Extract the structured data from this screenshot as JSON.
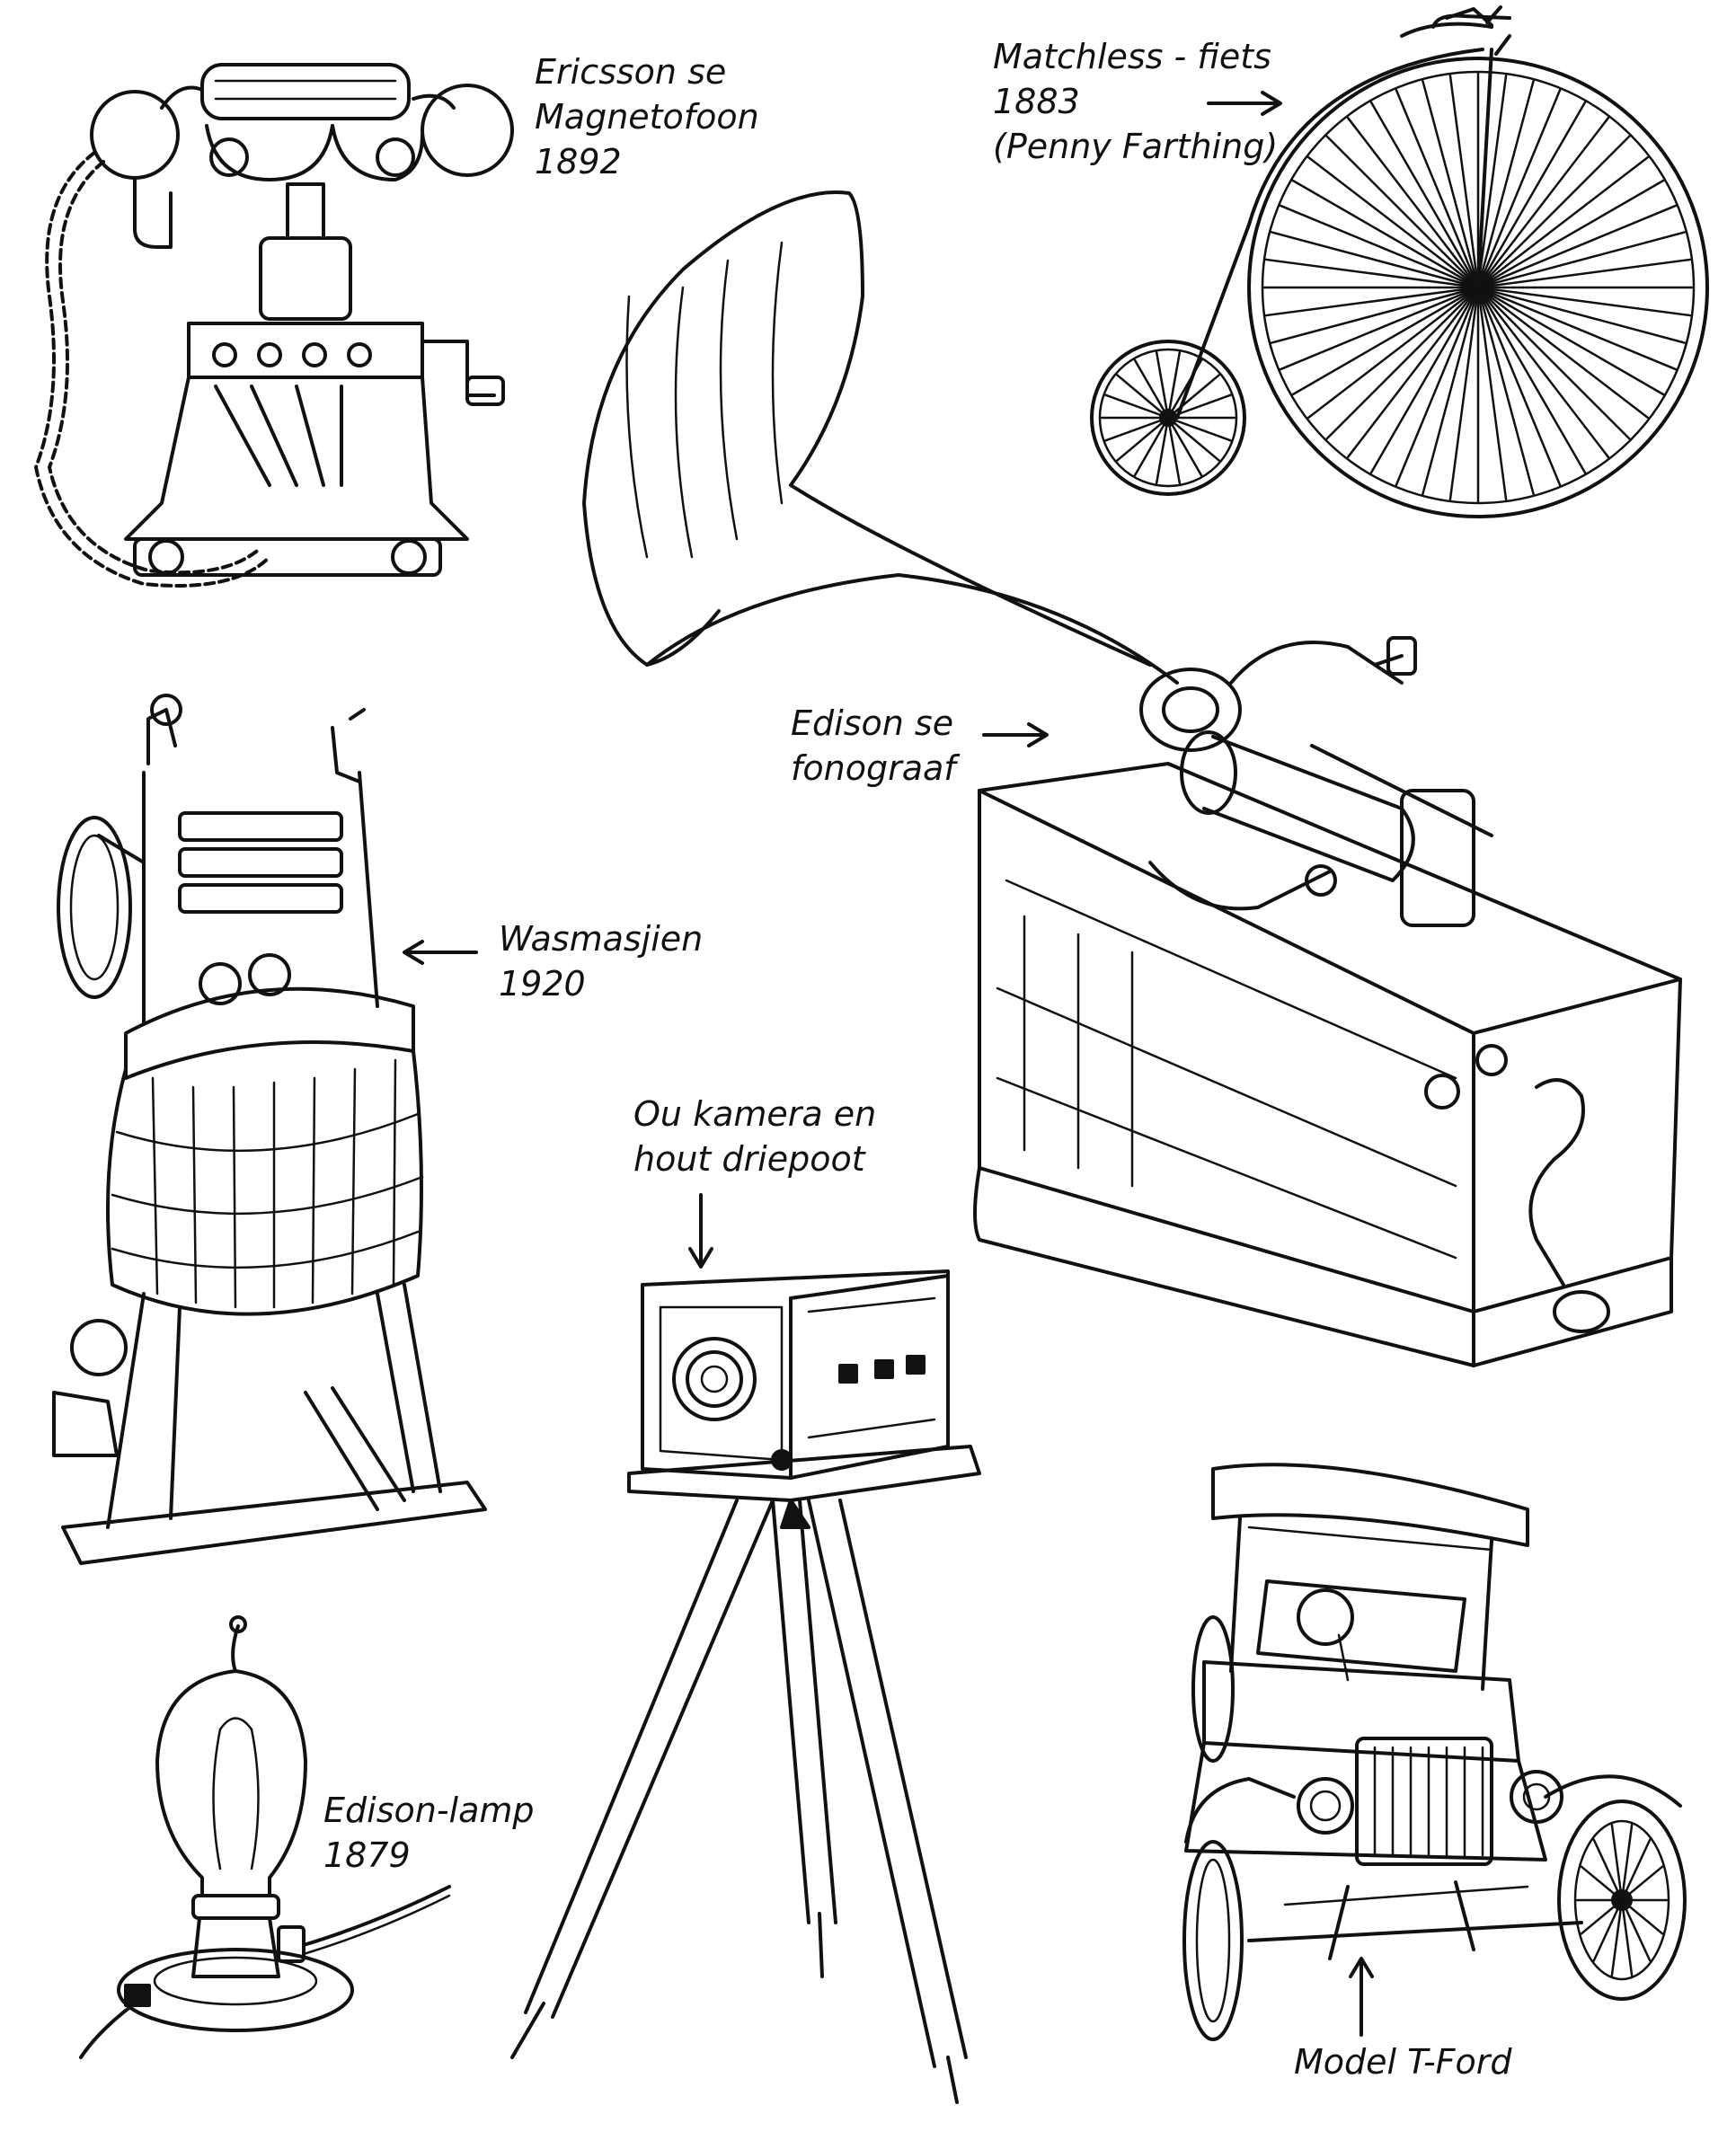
{
  "labels": {
    "telephone": {
      "line1": "Ericsson se",
      "line2": "Magnetofoon",
      "line3": "1892"
    },
    "bicycle": {
      "line1": "Matchless - fiets",
      "line2": "1883",
      "line3": "(Penny Farthing)"
    },
    "phonograph": {
      "line1": "Edison se",
      "line2": "fonograaf"
    },
    "washer": {
      "line1": "Wasmasjien",
      "line2": "1920"
    },
    "camera": {
      "line1": "Ou kamera en",
      "line2": "hout driepoot"
    },
    "lamp": {
      "line1": "Edison-lamp",
      "line2": "1879"
    },
    "car": {
      "line1": "Model T-Ford"
    }
  },
  "icons": [
    "telephone-icon",
    "penny-farthing-icon",
    "phonograph-icon",
    "washing-machine-icon",
    "camera-tripod-icon",
    "light-bulb-icon",
    "model-t-icon"
  ],
  "colors": {
    "ink": "#111111",
    "paper": "#ffffff"
  }
}
